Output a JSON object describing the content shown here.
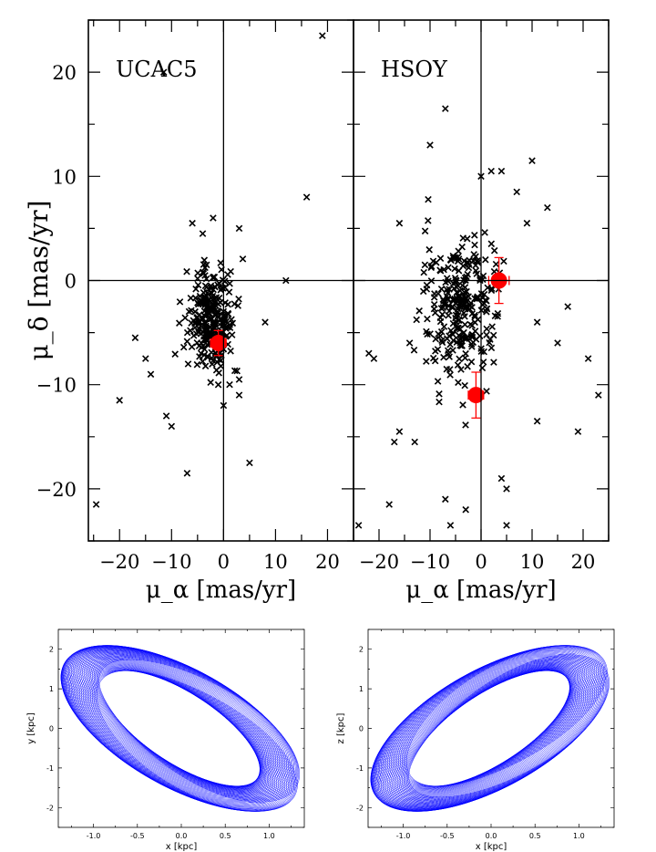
{
  "chart_data": [
    {
      "type": "scatter",
      "title": "UCAC5",
      "xlabel": "μ_α [mas/yr]",
      "ylabel": "μ_δ [mas/yr]",
      "xlim": [
        -26,
        25
      ],
      "ylim": [
        -25,
        25
      ],
      "xticks": [
        -20,
        -10,
        0,
        10,
        20
      ],
      "yticks": [
        -20,
        -10,
        0,
        10,
        20
      ],
      "xticklabels": [
        "−20",
        "−10",
        "0",
        "10",
        "20"
      ],
      "yticklabels": [
        "−20",
        "−10",
        "0",
        "10",
        "20"
      ],
      "reference_lines": {
        "x": 0,
        "y": 0
      },
      "grid": false,
      "series": [
        {
          "marker": "x",
          "color": "#000000",
          "cluster": {
            "center": [
              -2,
              -4
            ],
            "spread": [
              3.5,
              3.5
            ],
            "count": 260
          },
          "points": [
            [
              -24.5,
              -21.5
            ],
            [
              -20,
              -11.5
            ],
            [
              -17,
              -5.5
            ],
            [
              -15,
              -7.5
            ],
            [
              -14,
              -9
            ],
            [
              -11,
              -13
            ],
            [
              -10,
              -14
            ],
            [
              -7,
              -18.5
            ],
            [
              -6,
              5.5
            ],
            [
              -4,
              4.5
            ],
            [
              -2,
              6
            ],
            [
              3,
              5
            ],
            [
              3,
              -9.5
            ],
            [
              3,
              -11
            ],
            [
              5,
              -17.5
            ],
            [
              8,
              -4
            ],
            [
              12,
              0
            ],
            [
              16,
              8
            ],
            [
              19,
              23.5
            ],
            [
              -11.5,
              20
            ],
            [
              0,
              -12
            ],
            [
              -1,
              -10
            ]
          ]
        },
        {
          "marker": "circle",
          "color": "#ff0000",
          "points": [
            [
              -1,
              -6
            ]
          ],
          "errors": [
            [
              1.5,
              1.2
            ]
          ]
        }
      ]
    },
    {
      "type": "scatter",
      "title": "HSOY",
      "xlabel": "μ_α [mas/yr]",
      "ylabel": "",
      "xlim": [
        -25,
        25
      ],
      "ylim": [
        -25,
        25
      ],
      "xticks": [
        -20,
        -10,
        0,
        10,
        20
      ],
      "xticklabels": [
        "−20",
        "−10",
        "0",
        "10",
        "20"
      ],
      "reference_lines": {
        "x": 0,
        "y": 0
      },
      "grid": false,
      "series": [
        {
          "marker": "x",
          "color": "#000000",
          "cluster": {
            "center": [
              -4,
              -3
            ],
            "spread": [
              5,
              5
            ],
            "count": 280
          },
          "points": [
            [
              -24,
              -23.5
            ],
            [
              -21,
              -7.5
            ],
            [
              -18,
              -21.5
            ],
            [
              -17,
              -15.5
            ],
            [
              -16,
              -14.5
            ],
            [
              -16,
              5.5
            ],
            [
              -14,
              -6
            ],
            [
              -10,
              13
            ],
            [
              -7,
              16.5
            ],
            [
              -7,
              -21
            ],
            [
              -6,
              -23.5
            ],
            [
              -3,
              -22
            ],
            [
              0,
              10
            ],
            [
              2,
              10.5
            ],
            [
              4,
              10.5
            ],
            [
              4,
              -19
            ],
            [
              5,
              -20
            ],
            [
              5,
              -23.5
            ],
            [
              7,
              8.5
            ],
            [
              9,
              5.5
            ],
            [
              10,
              11.5
            ],
            [
              11,
              -13.5
            ],
            [
              13,
              7
            ],
            [
              15,
              -6
            ],
            [
              17,
              -2.5
            ],
            [
              19,
              -14.5
            ],
            [
              21,
              -7.5
            ],
            [
              23,
              -11
            ],
            [
              -22,
              -7
            ],
            [
              -13,
              -15.5
            ],
            [
              -11,
              1.5
            ],
            [
              11,
              -4
            ]
          ]
        },
        {
          "marker": "circle",
          "color": "#ff0000",
          "points": [
            [
              3.5,
              0
            ],
            [
              -1,
              -11
            ]
          ],
          "errors": [
            [
              2,
              2.2
            ],
            [
              1.5,
              2.2
            ]
          ]
        }
      ]
    },
    {
      "type": "line",
      "title": "",
      "xlabel": "x [kpc]",
      "ylabel": "y [kpc]",
      "xlim": [
        -1.4,
        1.4
      ],
      "ylim": [
        -2.5,
        2.5
      ],
      "xticks": [
        -1.0,
        -0.5,
        0.0,
        0.5,
        1.0
      ],
      "yticks": [
        -2,
        -1,
        0,
        1,
        2
      ],
      "xticklabels": [
        "-1.0",
        "-0.5",
        "0.0",
        "0.5",
        "1.0"
      ],
      "yticklabels": [
        "-2",
        "-1",
        "0",
        "1",
        "2"
      ],
      "color": "#0000ff",
      "orbit": {
        "semi_axes_outer": [
          2.5,
          0.95
        ],
        "semi_axes_inner": [
          1.75,
          0.55
        ],
        "tilt": "descending",
        "rosette_loops": 60
      }
    },
    {
      "type": "line",
      "title": "",
      "xlabel": "x [kpc]",
      "ylabel": "z [kpc]",
      "xlim": [
        -1.4,
        1.4
      ],
      "ylim": [
        -2.5,
        2.5
      ],
      "xticks": [
        -1.0,
        -0.5,
        0.0,
        0.5,
        1.0
      ],
      "yticks": [
        -2,
        -1,
        0,
        1,
        2
      ],
      "xticklabels": [
        "-1.0",
        "-0.5",
        "0.0",
        "0.5",
        "1.0"
      ],
      "yticklabels": [
        "-2",
        "-1",
        "0",
        "1",
        "2"
      ],
      "color": "#0000ff",
      "orbit": {
        "semi_axes_outer": [
          2.5,
          0.95
        ],
        "semi_axes_inner": [
          1.75,
          0.55
        ],
        "tilt": "ascending",
        "rosette_loops": 60
      }
    }
  ]
}
